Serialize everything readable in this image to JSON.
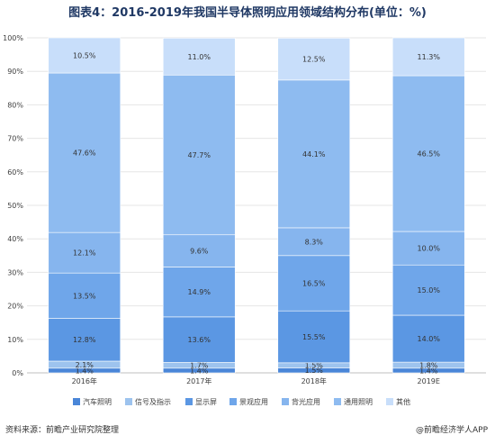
{
  "title": "图表4：2016-2019年我国半导体照明应用领域结构分布(单位：%)",
  "source": "资料来源：前瞻产业研究院整理",
  "credit": "@前瞻经济学人APP",
  "chart_data": {
    "type": "bar",
    "stacked": true,
    "categories": [
      "2016年",
      "2017年",
      "2018年",
      "2019E"
    ],
    "ylim": [
      0,
      100
    ],
    "yticks": [
      "0%",
      "10%",
      "20%",
      "30%",
      "40%",
      "50%",
      "60%",
      "70%",
      "80%",
      "90%",
      "100%"
    ],
    "legend_position": "bottom",
    "series": [
      {
        "name": "汽车照明",
        "color": "#4a86d8",
        "values": [
          1.4,
          1.4,
          1.5,
          1.4
        ],
        "labels": [
          "1.4%",
          "1.4%",
          "1.5%",
          "1.4%"
        ]
      },
      {
        "name": "信号及指示",
        "color": "#9dc3ee",
        "values": [
          2.1,
          1.7,
          1.5,
          1.8
        ],
        "labels": [
          "2.1%",
          "1.7%",
          "1.5%",
          "1.8%"
        ]
      },
      {
        "name": "显示屏",
        "color": "#5b97e3",
        "values": [
          12.8,
          13.6,
          15.5,
          14.0
        ],
        "labels": [
          "12.8%",
          "13.6%",
          "15.5%",
          "14.0%"
        ]
      },
      {
        "name": "景观应用",
        "color": "#6fa6ea",
        "values": [
          13.5,
          14.9,
          16.5,
          15.0
        ],
        "labels": [
          "13.5%",
          "14.9%",
          "16.5%",
          "15.0%"
        ]
      },
      {
        "name": "背光应用",
        "color": "#86b5ee",
        "values": [
          12.1,
          9.6,
          8.3,
          10.0
        ],
        "labels": [
          "12.1%",
          "9.6%",
          "8.3%",
          "10.0%"
        ]
      },
      {
        "name": "通用照明",
        "color": "#8ebbf0",
        "values": [
          47.6,
          47.7,
          44.1,
          46.5
        ],
        "labels": [
          "47.6%",
          "47.7%",
          "44.1%",
          "46.5%"
        ]
      },
      {
        "name": "其他",
        "color": "#c8defa",
        "values": [
          10.5,
          11.0,
          12.5,
          11.3
        ],
        "labels": [
          "10.5%",
          "11.0%",
          "12.5%",
          "11.3%"
        ]
      }
    ]
  }
}
